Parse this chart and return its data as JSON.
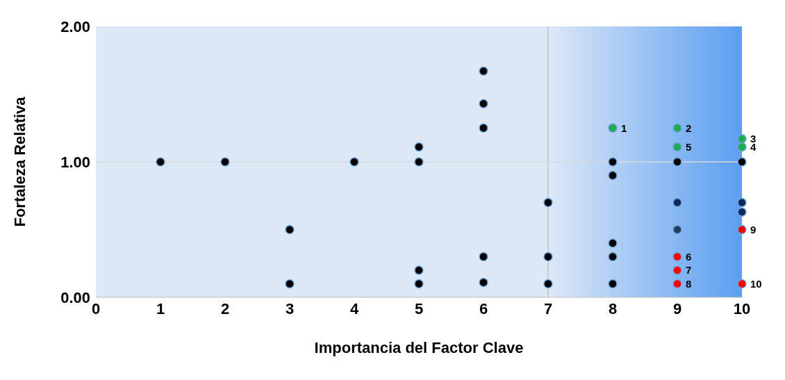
{
  "chart_data": {
    "type": "scatter",
    "xlabel": "Importancia del Factor Clave",
    "ylabel": "Fortaleza Relativa",
    "xlim": [
      0,
      10
    ],
    "xticks": [
      0,
      1,
      2,
      3,
      4,
      5,
      6,
      7,
      8,
      9,
      10
    ],
    "ylim": [
      0,
      2
    ],
    "yticks": [
      {
        "value": 0,
        "label": "0.00"
      },
      {
        "value": 1,
        "label": "1.00"
      },
      {
        "value": 2,
        "label": "2.00"
      }
    ],
    "grid": false,
    "legend": false,
    "marker": "circle",
    "ref_lines": [
      {
        "axis": "x",
        "value": 7,
        "color": "#bfbfbf"
      },
      {
        "axis": "y",
        "value": 1,
        "color": "#d9d9d9"
      }
    ],
    "bands": [
      {
        "axis": "x",
        "from": 7,
        "to": 10,
        "color": "#5b9ef0"
      }
    ],
    "series": [
      {
        "x": [
          1,
          2,
          3,
          3,
          4,
          5,
          5,
          5,
          5,
          6,
          6,
          6,
          6,
          6,
          7,
          7,
          7,
          8,
          8,
          8,
          8,
          8,
          8,
          9,
          9,
          9,
          9,
          9,
          9,
          9,
          9,
          10,
          10,
          10,
          10,
          10,
          10,
          10
        ],
        "values": [
          1,
          1,
          0.5,
          0.1,
          1,
          1.11,
          1,
          0.2,
          0.1,
          1.67,
          1.43,
          1.25,
          0.3,
          0.11,
          0.7,
          0.3,
          0.1,
          1.25,
          1,
          0.9,
          0.4,
          0.3,
          0.1,
          1.25,
          1.11,
          1,
          0.7,
          0.5,
          0.3,
          0.2,
          0.1,
          1.17,
          1.11,
          1,
          0.7,
          0.63,
          0.5,
          0.1
        ],
        "colors": [
          "#000000",
          "#000000",
          "#000000",
          "#000000",
          "#000000",
          "#000000",
          "#000000",
          "#000000",
          "#000000",
          "#000000",
          "#000000",
          "#000000",
          "#000000",
          "#000000",
          "#000000",
          "#000000",
          "#000000",
          "#1faa55",
          "#000000",
          "#000000",
          "#000000",
          "#000000",
          "#000000",
          "#1faa55",
          "#1faa55",
          "#000000",
          "#0d2a5a",
          "#243f60",
          "#ff0000",
          "#ff0000",
          "#ff0000",
          "#1faa55",
          "#1faa55",
          "#000000",
          "#0d2a5a",
          "#0d2a5a",
          "#ff0000",
          "#ff0000"
        ]
      }
    ],
    "annotations": [
      {
        "text": "1",
        "x": 8,
        "y": 1.25
      },
      {
        "text": "2",
        "x": 9,
        "y": 1.25
      },
      {
        "text": "3",
        "x": 10,
        "y": 1.17
      },
      {
        "text": "4",
        "x": 10,
        "y": 1.11
      },
      {
        "text": "5",
        "x": 9,
        "y": 1.11
      },
      {
        "text": "6",
        "x": 9,
        "y": 0.3
      },
      {
        "text": "7",
        "x": 9,
        "y": 0.2
      },
      {
        "text": "8",
        "x": 9,
        "y": 0.1
      },
      {
        "text": "9",
        "x": 10,
        "y": 0.5
      },
      {
        "text": "10",
        "x": 10,
        "y": 0.1
      }
    ]
  }
}
